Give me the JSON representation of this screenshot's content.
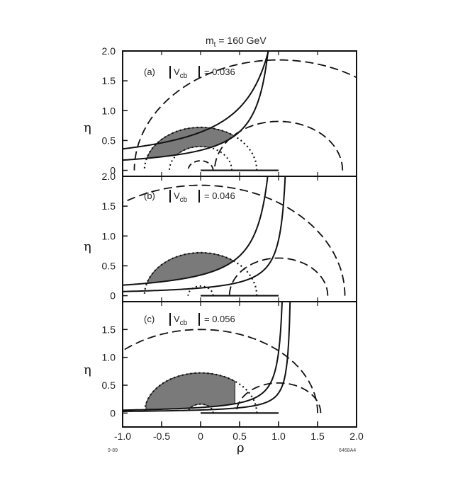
{
  "chart_data": {
    "type": "line",
    "title": "m t = 160 GeV",
    "title_parts": {
      "prefix": "m",
      "sub": "t",
      "suffix": " = 160 GeV"
    },
    "xlabel": "ρ",
    "ylabel": "η",
    "xlim": [
      -1.0,
      2.0
    ],
    "xticks": [
      "-1.0",
      "-0.5",
      "0",
      "0.5",
      "1.0",
      "1.5",
      "2.0"
    ],
    "footer_left": "9-89",
    "footer_right": "6468A4",
    "panels": [
      {
        "id": "a",
        "label": "(a)",
        "vcb_prefix": "V",
        "vcb_sub": "cb",
        "vcb_value": "= 0.036",
        "ylim": [
          -0.1,
          2.0
        ],
        "yticks": [
          "0",
          "0.5",
          "1.0",
          "1.5",
          "2.0"
        ],
        "upper_ru_circle": {
          "rho": 1.0,
          "eta": 0.0,
          "r": 1.85
        },
        "lower_ru_circle": {
          "rho": 0.0,
          "eta": 0.0,
          "r": 0.4
        },
        "outer_rt_circle": {
          "rho": 1.0,
          "eta": 0.0,
          "r": 0.82
        },
        "inner_rt_circle": {
          "rho": 0.0,
          "eta": 0.0,
          "r": 0.16
        },
        "dotted_circle": {
          "rho": 0.0,
          "eta": 0.0,
          "r": 0.72
        },
        "epsilon_lower": {
          "c": 0.35,
          "a": 1.04
        },
        "epsilon_upper": {
          "c": 0.82,
          "a": 1.28
        },
        "shaded_region": "allowed",
        "segment": [
          0.0,
          1.0
        ]
      },
      {
        "id": "b",
        "label": "(b)",
        "vcb_prefix": "V",
        "vcb_sub": "cb",
        "vcb_value": "= 0.046",
        "ylim": [
          -0.1,
          2.0
        ],
        "yticks": [
          "0",
          "0.5",
          "1.0",
          "1.5",
          "2.0"
        ],
        "upper_ru_circle": {
          "rho": 0.0,
          "eta": 0.0,
          "r": 1.85
        },
        "lower_ru_circle": {
          "rho": 0.0,
          "eta": 0.0,
          "r": 0.16
        },
        "outer_rt_circle": {
          "rho": 1.0,
          "eta": 0.0,
          "r": 0.63
        },
        "inner_rt_circle": {
          "rho": 1.0,
          "eta": 0.0,
          "r": 0.0
        },
        "dotted_circle": {
          "rho": 0.0,
          "eta": 0.0,
          "r": 0.72
        },
        "epsilon_lower": {
          "c": 0.36,
          "a": 1.04
        },
        "epsilon_upper": {
          "c": 0.15,
          "a": 1.16
        },
        "shaded_region": "allowed",
        "segment": [
          0.0,
          1.0
        ]
      },
      {
        "id": "c",
        "label": "(c)",
        "vcb_prefix": "V",
        "vcb_sub": "cb",
        "vcb_value": "= 0.056",
        "ylim": [
          -0.25,
          2.0
        ],
        "yticks": [
          "0",
          "0.5",
          "1.0",
          "1.5"
        ],
        "upper_ru_circle": {
          "rho": 0.0,
          "eta": 0.0,
          "r": 1.5
        },
        "lower_ru_circle": {
          "rho": 0.0,
          "eta": 0.0,
          "r": 0.16
        },
        "outer_rt_circle": {
          "rho": 1.0,
          "eta": 0.0,
          "r": 0.54
        },
        "inner_rt_circle": {
          "rho": 1.0,
          "eta": 0.0,
          "r": 0.0
        },
        "dotted_circle": {
          "rho": 0.0,
          "eta": 0.0,
          "r": 0.72
        },
        "epsilon_lower": {
          "c": 0.11,
          "a": 1.1
        },
        "epsilon_upper": {
          "c": 0.065,
          "a": 1.18
        },
        "shaded_region": "allowed",
        "segment": [
          0.0,
          1.0
        ]
      }
    ]
  }
}
